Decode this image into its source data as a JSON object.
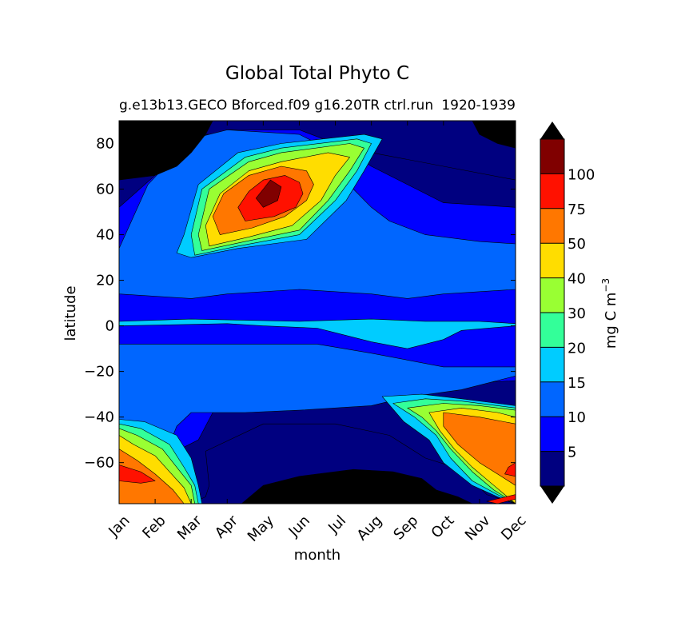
{
  "chart_data": {
    "type": "heatmap",
    "title": "Global Total Phyto C",
    "subtitle_left": "g.e13b13.GECO Bforced.f09 g16.20TR ctrl.run",
    "subtitle_right": "1920-1939",
    "xlabel": "month",
    "ylabel": "latitude",
    "x_ticks": [
      "Jan",
      "Feb",
      "Mar",
      "Apr",
      "May",
      "Jun",
      "Jul",
      "Aug",
      "Sep",
      "Oct",
      "Nov",
      "Dec"
    ],
    "xlim": [
      1,
      12
    ],
    "y_ticks": [
      -60,
      -40,
      -20,
      0,
      20,
      40,
      60,
      80
    ],
    "y_tick_labels": [
      "−60",
      "−40",
      "−20",
      "0",
      "20",
      "40",
      "60",
      "80"
    ],
    "ylim": [
      -78,
      90
    ],
    "colorbar": {
      "label": "mg C m",
      "label_exponent": "−3",
      "levels": [
        0,
        5,
        10,
        15,
        20,
        30,
        40,
        50,
        75,
        100,
        125
      ],
      "tick_labels": [
        "5",
        "10",
        "15",
        "20",
        "30",
        "40",
        "50",
        "75",
        "100"
      ],
      "colors": [
        "#000080",
        "#0000ff",
        "#0066ff",
        "#00ccff",
        "#33ff99",
        "#99ff33",
        "#ffdd00",
        "#ff7700",
        "#ff1100",
        "#800000"
      ],
      "extend_under_color": "#000000",
      "extend_over_color": "#000000"
    },
    "background_color": "#000000",
    "regions": [
      {
        "level": 1,
        "points": [
          [
            1,
            -78
          ],
          [
            12,
            -78
          ],
          [
            12,
            90
          ],
          [
            1,
            90
          ]
        ]
      },
      {
        "level": 1,
        "points": [
          [
            1,
            -78
          ],
          [
            2.2,
            -78
          ],
          [
            3,
            -78
          ],
          [
            3.4,
            -75
          ],
          [
            3.5,
            -70
          ],
          [
            3.4,
            -55
          ],
          [
            5,
            -43
          ],
          [
            7,
            -43
          ],
          [
            8.5,
            -48
          ],
          [
            9.5,
            -58
          ],
          [
            10.5,
            -63
          ],
          [
            11.2,
            -74
          ],
          [
            12,
            -78
          ],
          [
            12,
            64
          ],
          [
            10,
            70
          ],
          [
            8,
            76
          ],
          [
            6,
            84
          ],
          [
            3,
            84
          ],
          [
            1,
            70
          ]
        ]
      },
      {
        "level": 2,
        "points": [
          [
            1,
            -78
          ],
          [
            1.4,
            -70
          ],
          [
            1.8,
            -64
          ],
          [
            2.2,
            -58
          ],
          [
            3.2,
            -50
          ],
          [
            3.6,
            -38
          ],
          [
            6,
            -34
          ],
          [
            8,
            -30
          ],
          [
            8.3,
            -28
          ],
          [
            10,
            -26
          ],
          [
            12,
            -24
          ],
          [
            12,
            52
          ],
          [
            10,
            54
          ],
          [
            8,
            70
          ],
          [
            7,
            80
          ],
          [
            6,
            86
          ],
          [
            4,
            86
          ],
          [
            3,
            80
          ],
          [
            1,
            52
          ]
        ]
      },
      {
        "level": 3,
        "points": [
          [
            1,
            -78
          ],
          [
            1.4,
            -70
          ],
          [
            1.8,
            -64
          ],
          [
            2.3,
            -56
          ],
          [
            2.6,
            -44
          ],
          [
            3,
            -38
          ],
          [
            4.5,
            -38
          ],
          [
            6,
            -37
          ],
          [
            8,
            -35
          ],
          [
            8.8,
            -32
          ],
          [
            9.6,
            -30
          ],
          [
            10.5,
            -28
          ],
          [
            12,
            -22
          ],
          [
            12,
            -18
          ],
          [
            10,
            -18
          ],
          [
            8,
            -12
          ],
          [
            6.5,
            -8
          ],
          [
            4,
            -8
          ],
          [
            1,
            -8
          ],
          [
            1,
            14
          ],
          [
            3,
            12
          ],
          [
            4,
            14
          ],
          [
            6,
            16
          ],
          [
            8,
            14
          ],
          [
            9,
            12
          ],
          [
            10,
            14
          ],
          [
            12,
            16
          ],
          [
            12,
            36
          ],
          [
            11,
            37
          ],
          [
            9.5,
            40
          ],
          [
            8.5,
            46
          ],
          [
            8,
            52
          ],
          [
            7.5,
            60
          ],
          [
            7,
            70
          ],
          [
            6.5,
            80
          ],
          [
            6,
            84
          ],
          [
            4,
            86
          ],
          [
            3,
            82
          ],
          [
            1.8,
            62
          ],
          [
            1,
            34
          ]
        ]
      },
      {
        "level": 4,
        "points": [
          [
            8.3,
            -31
          ],
          [
            9.4,
            -30
          ],
          [
            10.5,
            -32
          ],
          [
            11.5,
            -34
          ],
          [
            12,
            -35
          ],
          [
            12,
            -78
          ],
          [
            11.5,
            -75
          ],
          [
            10.8,
            -70
          ],
          [
            10,
            -60
          ],
          [
            9.6,
            -50
          ],
          [
            8.9,
            -42
          ]
        ]
      },
      {
        "level": 4,
        "points": [
          [
            1,
            -41
          ],
          [
            1.7,
            -42
          ],
          [
            2.6,
            -48
          ],
          [
            3,
            -58
          ],
          [
            3.2,
            -70
          ],
          [
            3.3,
            -78
          ],
          [
            1,
            -78
          ]
        ]
      },
      {
        "level": 4,
        "points": [
          [
            1,
            0
          ],
          [
            4,
            1
          ],
          [
            5,
            0
          ],
          [
            6.5,
            -1
          ],
          [
            7,
            -3
          ],
          [
            8,
            -7
          ],
          [
            9,
            -10
          ],
          [
            10,
            -6
          ],
          [
            10.5,
            -2
          ],
          [
            12,
            0
          ],
          [
            12,
            1
          ],
          [
            11,
            2
          ],
          [
            9.5,
            2
          ],
          [
            8,
            3
          ],
          [
            6,
            2
          ],
          [
            3,
            3
          ],
          [
            1,
            2
          ]
        ]
      },
      {
        "level": 4,
        "points": [
          [
            3,
            30
          ],
          [
            4.3,
            34
          ],
          [
            6.2,
            38
          ],
          [
            7.3,
            55
          ],
          [
            7.8,
            68
          ],
          [
            8.3,
            82
          ],
          [
            7.8,
            84
          ],
          [
            5.5,
            80
          ],
          [
            4.3,
            76
          ],
          [
            3.2,
            62
          ],
          [
            2.8,
            40
          ],
          [
            2.6,
            32
          ]
        ]
      },
      {
        "level": 5,
        "points": [
          [
            8.6,
            -34
          ],
          [
            9.5,
            -32
          ],
          [
            10.5,
            -33
          ],
          [
            11.5,
            -35
          ],
          [
            12,
            -36
          ],
          [
            12,
            -78
          ],
          [
            11.5,
            -74
          ],
          [
            10.8,
            -68
          ],
          [
            10.2,
            -58
          ],
          [
            9.8,
            -48
          ],
          [
            9.2,
            -40
          ]
        ]
      },
      {
        "level": 5,
        "points": [
          [
            1,
            -43
          ],
          [
            1.6,
            -45
          ],
          [
            2.4,
            -52
          ],
          [
            2.8,
            -62
          ],
          [
            3.1,
            -70
          ],
          [
            3.2,
            -78
          ],
          [
            1,
            -78
          ]
        ]
      },
      {
        "level": 5,
        "points": [
          [
            3.1,
            31
          ],
          [
            4.3,
            35
          ],
          [
            6,
            40
          ],
          [
            7,
            55
          ],
          [
            7.6,
            68
          ],
          [
            8,
            80
          ],
          [
            7.6,
            82
          ],
          [
            5.5,
            78
          ],
          [
            4.5,
            74
          ],
          [
            3.3,
            60
          ],
          [
            3,
            40
          ]
        ]
      },
      {
        "level": 6,
        "points": [
          [
            9,
            -36
          ],
          [
            10,
            -34
          ],
          [
            11,
            -35
          ],
          [
            12,
            -37
          ],
          [
            12,
            -78
          ],
          [
            11.4,
            -72
          ],
          [
            10.8,
            -64
          ],
          [
            10.2,
            -54
          ],
          [
            9.8,
            -46
          ],
          [
            9.4,
            -40
          ]
        ]
      },
      {
        "level": 6,
        "points": [
          [
            1,
            -45
          ],
          [
            1.5,
            -48
          ],
          [
            2.2,
            -54
          ],
          [
            2.6,
            -62
          ],
          [
            3,
            -70
          ],
          [
            3.1,
            -78
          ],
          [
            1,
            -78
          ]
        ]
      },
      {
        "level": 6,
        "points": [
          [
            3.3,
            33
          ],
          [
            4.5,
            37
          ],
          [
            6,
            42
          ],
          [
            6.8,
            55
          ],
          [
            7.4,
            68
          ],
          [
            7.8,
            78
          ],
          [
            7.4,
            80
          ],
          [
            5.5,
            76
          ],
          [
            4.6,
            72
          ],
          [
            3.5,
            60
          ],
          [
            3.2,
            40
          ]
        ]
      },
      {
        "level": 7,
        "points": [
          [
            9.6,
            -38
          ],
          [
            10.5,
            -36
          ],
          [
            11.5,
            -38
          ],
          [
            12,
            -40
          ],
          [
            12,
            -78
          ],
          [
            11.4,
            -70
          ],
          [
            10.8,
            -62
          ],
          [
            10.3,
            -54
          ],
          [
            9.9,
            -46
          ]
        ]
      },
      {
        "level": 7,
        "points": [
          [
            1,
            -48
          ],
          [
            1.4,
            -52
          ],
          [
            2,
            -57
          ],
          [
            2.4,
            -64
          ],
          [
            2.8,
            -71
          ],
          [
            3,
            -78
          ],
          [
            1,
            -78
          ]
        ]
      },
      {
        "level": 7,
        "points": [
          [
            3.5,
            35
          ],
          [
            4.6,
            39
          ],
          [
            5.8,
            44
          ],
          [
            6.6,
            55
          ],
          [
            7,
            66
          ],
          [
            7.4,
            74
          ],
          [
            6.8,
            76
          ],
          [
            5.5,
            72
          ],
          [
            4.6,
            68
          ],
          [
            3.8,
            58
          ],
          [
            3.4,
            44
          ]
        ]
      },
      {
        "level": 8,
        "points": [
          [
            10,
            -38
          ],
          [
            11,
            -40
          ],
          [
            12,
            -43
          ],
          [
            12,
            -70
          ],
          [
            11.6,
            -66
          ],
          [
            11,
            -60
          ],
          [
            10.4,
            -52
          ],
          [
            10,
            -44
          ]
        ]
      },
      {
        "level": 8,
        "points": [
          [
            1,
            -54
          ],
          [
            1.5,
            -59
          ],
          [
            2,
            -65
          ],
          [
            2.5,
            -72
          ],
          [
            2.8,
            -78
          ],
          [
            1,
            -78
          ]
        ]
      },
      {
        "level": 8,
        "points": [
          [
            3.8,
            40
          ],
          [
            4.7,
            43
          ],
          [
            5.6,
            48
          ],
          [
            6.2,
            55
          ],
          [
            6.4,
            62
          ],
          [
            6.2,
            68
          ],
          [
            5.5,
            70
          ],
          [
            4.6,
            66
          ],
          [
            3.9,
            58
          ],
          [
            3.6,
            48
          ]
        ]
      },
      {
        "level": 9,
        "points": [
          [
            11.8,
            -62
          ],
          [
            12,
            -60
          ],
          [
            12,
            -66
          ],
          [
            11.7,
            -65
          ]
        ]
      },
      {
        "level": 9,
        "points": [
          [
            1,
            -61
          ],
          [
            1.6,
            -64
          ],
          [
            2,
            -68
          ],
          [
            1.6,
            -69
          ],
          [
            1,
            -68
          ]
        ]
      },
      {
        "level": 9,
        "points": [
          [
            4.5,
            46
          ],
          [
            5.3,
            48
          ],
          [
            5.9,
            52
          ],
          [
            6.1,
            58
          ],
          [
            6,
            63
          ],
          [
            5.6,
            66
          ],
          [
            5,
            64
          ],
          [
            4.6,
            59
          ],
          [
            4.3,
            52
          ]
        ]
      },
      {
        "level": 9,
        "points": [
          [
            11.2,
            -77
          ],
          [
            12,
            -74
          ],
          [
            12,
            -76
          ],
          [
            11.5,
            -78
          ]
        ]
      },
      {
        "level": 10,
        "points": [
          [
            5,
            52
          ],
          [
            5.4,
            55
          ],
          [
            5.5,
            61
          ],
          [
            5.2,
            64
          ],
          [
            5,
            60
          ],
          [
            4.8,
            56
          ]
        ]
      },
      {
        "level": 0,
        "points": [
          [
            1,
            64
          ],
          [
            2,
            66
          ],
          [
            2.6,
            70
          ],
          [
            3,
            76
          ],
          [
            3.4,
            84
          ],
          [
            3.6,
            90
          ],
          [
            1,
            90
          ]
        ]
      },
      {
        "level": 0,
        "points": [
          [
            10.8,
            90
          ],
          [
            11,
            84
          ],
          [
            11.5,
            80
          ],
          [
            12,
            78
          ],
          [
            12,
            90
          ]
        ]
      },
      {
        "level": 0,
        "points": [
          [
            4.4,
            -78
          ],
          [
            5,
            -70
          ],
          [
            6,
            -66
          ],
          [
            7.5,
            -63
          ],
          [
            8.6,
            -64
          ],
          [
            9.4,
            -67
          ],
          [
            9.8,
            -72
          ],
          [
            10.4,
            -75
          ],
          [
            10.8,
            -78
          ]
        ]
      }
    ]
  }
}
